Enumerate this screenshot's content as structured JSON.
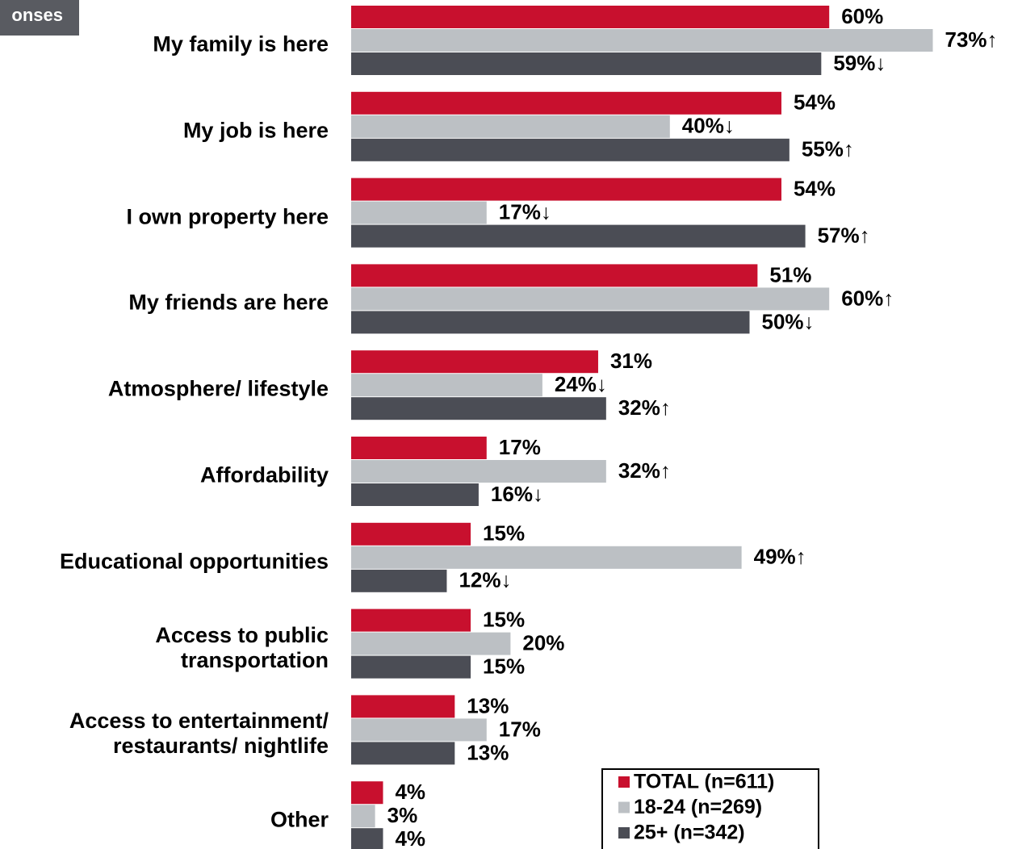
{
  "chart_data": {
    "type": "hbar",
    "tag": "onses",
    "categories": [
      "My family is here",
      "My job is here",
      "I own property here",
      "My friends are here",
      "Atmosphere/ lifestyle",
      "Affordability",
      "Educational opportunities",
      "Access to public\ntransportation",
      "Access to entertainment/\nrestaurants/ nightlife",
      "Other"
    ],
    "series": [
      {
        "name": "TOTAL (n=611)",
        "color": "#c8102e",
        "values": [
          60,
          54,
          54,
          51,
          31,
          17,
          15,
          15,
          13,
          4
        ],
        "value_labels": [
          "60%",
          "54%",
          "54%",
          "51%",
          "31%",
          "17%",
          "15%",
          "15%",
          "13%",
          "4%"
        ]
      },
      {
        "name": "18-24 (n=269)",
        "color": "#bcc0c4",
        "values": [
          73,
          40,
          17,
          60,
          24,
          32,
          49,
          20,
          17,
          3
        ],
        "value_labels": [
          "73%↑",
          "40%↓",
          "17%↓",
          "60%↑",
          "24%↓",
          "32%↑",
          "49%↑",
          "20%",
          "17%",
          "3%"
        ]
      },
      {
        "name": "25+ (n=342)",
        "color": "#4b4d55",
        "values": [
          59,
          55,
          57,
          50,
          32,
          16,
          12,
          15,
          13,
          4
        ],
        "value_labels": [
          "59%↓",
          "55%↑",
          "57%↑",
          "50%↓",
          "32%↑",
          "16%↓",
          "12%↓",
          "15%",
          "13%",
          "4%"
        ]
      }
    ],
    "legend": "bottom-right"
  }
}
